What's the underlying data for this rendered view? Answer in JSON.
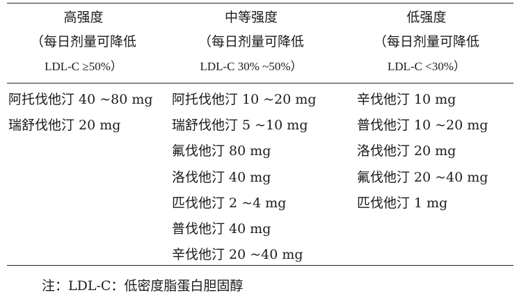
{
  "columns": [
    {
      "title": "高强度",
      "subtitle": "（每日剂量可降低",
      "ratio": "LDL-C ≥50%）",
      "items": [
        "阿托伐他汀 40 ~80 mg",
        "瑞舒伐他汀 20 mg"
      ]
    },
    {
      "title": "中等强度",
      "subtitle": "（每日剂量可降低",
      "ratio": "LDL-C 30% ~50%）",
      "items": [
        "阿托伐他汀 10 ~20 mg",
        "瑞舒伐他汀 5 ~10 mg",
        "氟伐他汀 80 mg",
        "洛伐他汀 40 mg",
        "匹伐他汀 2 ~4 mg",
        "普伐他汀 40 mg",
        "辛伐他汀 20 ~40 mg"
      ]
    },
    {
      "title": "低强度",
      "subtitle": "（每日剂量可降低",
      "ratio": "LDL-C <30%）",
      "items": [
        "辛伐他汀 10 mg",
        "普伐他汀 10 ~20 mg",
        "洛伐他汀 20 mg",
        "氟伐他汀 20 ~40 mg",
        "匹伐他汀 1 mg"
      ]
    }
  ],
  "note": "注：LDL-C：低密度脂蛋白胆固醇"
}
